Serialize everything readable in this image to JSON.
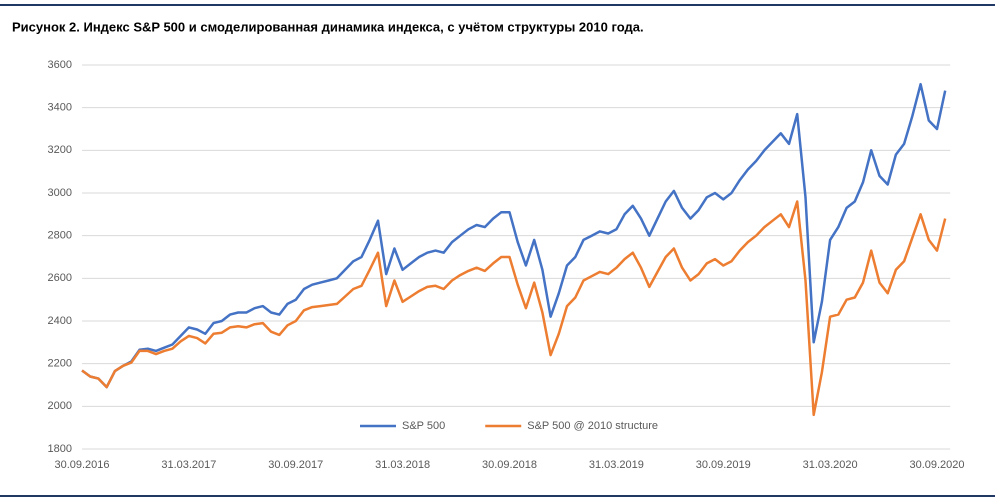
{
  "chart_data": {
    "type": "line",
    "title": "Рисунок 2. Индекс S&P 500 и смоделированная динамика индекса, с учётом структуры 2010 года.",
    "categories": [
      "30.09.2016",
      null,
      null,
      null,
      null,
      null,
      null,
      null,
      null,
      null,
      null,
      null,
      null,
      "31.03.2017",
      null,
      null,
      null,
      null,
      null,
      null,
      null,
      null,
      null,
      null,
      null,
      null,
      "30.09.2017",
      null,
      null,
      null,
      null,
      null,
      null,
      null,
      null,
      null,
      null,
      null,
      null,
      "31.03.2018",
      null,
      null,
      null,
      null,
      null,
      null,
      null,
      null,
      null,
      null,
      null,
      null,
      "30.09.2018",
      null,
      null,
      null,
      null,
      null,
      null,
      null,
      null,
      null,
      null,
      null,
      null,
      "31.03.2019",
      null,
      null,
      null,
      null,
      null,
      null,
      null,
      null,
      null,
      null,
      null,
      null,
      "30.09.2019",
      null,
      null,
      null,
      null,
      null,
      null,
      null,
      null,
      null,
      null,
      null,
      null,
      "31.03.2020",
      null,
      null,
      null,
      null,
      null,
      null,
      null,
      null,
      null,
      null,
      null,
      null,
      "30.09.2020",
      null
    ],
    "series": [
      {
        "name": "S&P 500",
        "color": "#4472c4",
        "values": [
          2168,
          2140,
          2130,
          2090,
          2165,
          2190,
          2210,
          2265,
          2270,
          2260,
          2275,
          2290,
          2330,
          2370,
          2360,
          2340,
          2390,
          2400,
          2430,
          2440,
          2440,
          2460,
          2470,
          2440,
          2430,
          2480,
          2500,
          2550,
          2570,
          2580,
          2590,
          2600,
          2640,
          2680,
          2700,
          2780,
          2870,
          2620,
          2740,
          2640,
          2670,
          2700,
          2720,
          2730,
          2720,
          2770,
          2800,
          2830,
          2850,
          2840,
          2880,
          2910,
          2910,
          2770,
          2660,
          2780,
          2640,
          2420,
          2530,
          2660,
          2700,
          2780,
          2800,
          2820,
          2810,
          2830,
          2900,
          2940,
          2880,
          2800,
          2880,
          2960,
          3010,
          2930,
          2880,
          2920,
          2980,
          3000,
          2970,
          3000,
          3060,
          3110,
          3150,
          3200,
          3240,
          3280,
          3230,
          3370,
          2980,
          2300,
          2490,
          2780,
          2840,
          2930,
          2960,
          3050,
          3200,
          3080,
          3040,
          3180,
          3230,
          3360,
          3510,
          3340,
          3300,
          3480
        ]
      },
      {
        "name": "S&P 500 @ 2010 structure",
        "color": "#ed7d31",
        "values": [
          2168,
          2140,
          2130,
          2090,
          2165,
          2190,
          2205,
          2260,
          2260,
          2245,
          2260,
          2270,
          2305,
          2330,
          2320,
          2295,
          2340,
          2345,
          2370,
          2375,
          2370,
          2385,
          2390,
          2350,
          2335,
          2380,
          2400,
          2450,
          2465,
          2470,
          2475,
          2480,
          2515,
          2550,
          2565,
          2640,
          2720,
          2470,
          2590,
          2490,
          2515,
          2540,
          2560,
          2565,
          2550,
          2590,
          2615,
          2635,
          2650,
          2635,
          2670,
          2700,
          2700,
          2570,
          2460,
          2580,
          2440,
          2240,
          2340,
          2470,
          2510,
          2590,
          2610,
          2630,
          2620,
          2650,
          2690,
          2720,
          2650,
          2560,
          2630,
          2700,
          2740,
          2650,
          2590,
          2620,
          2670,
          2690,
          2660,
          2680,
          2730,
          2770,
          2800,
          2840,
          2870,
          2900,
          2840,
          2960,
          2590,
          1960,
          2160,
          2420,
          2430,
          2500,
          2510,
          2580,
          2730,
          2580,
          2530,
          2640,
          2680,
          2790,
          2900,
          2780,
          2730,
          2880
        ]
      }
    ],
    "ylim": [
      1800,
      3600
    ],
    "yticks": [
      1800,
      2000,
      2200,
      2400,
      2600,
      2800,
      3000,
      3200,
      3400,
      3600
    ],
    "grid": true,
    "legend": "bottom"
  }
}
